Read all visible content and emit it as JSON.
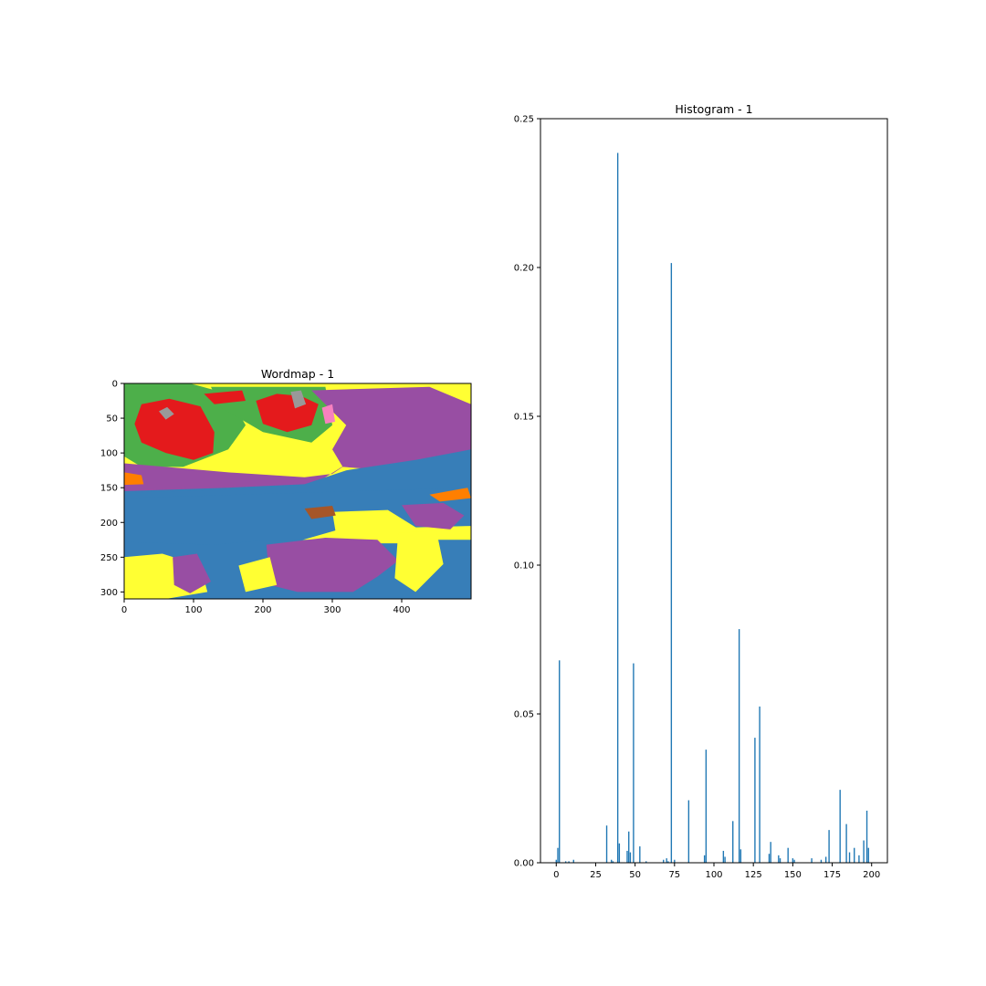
{
  "chart_data": [
    {
      "type": "heatmap",
      "title": "Wordmap - 1",
      "xlabel": "",
      "ylabel": "",
      "xlim": [
        0,
        500
      ],
      "ylim": [
        310,
        0
      ],
      "xticks": [
        "0",
        "100",
        "200",
        "300",
        "400"
      ],
      "yticks": [
        "0",
        "50",
        "100",
        "150",
        "200",
        "250",
        "300"
      ],
      "grid": false,
      "palette": {
        "red": "#e41a1c",
        "blue": "#377eb8",
        "green": "#4daf4a",
        "purple": "#984ea3",
        "orange": "#ff7f00",
        "yellow": "#ffff33",
        "brown": "#a65628",
        "pink": "#f781bf",
        "gray": "#999999"
      },
      "regions": [
        {
          "color": "yellow",
          "points": [
            [
              0,
              0
            ],
            [
              500,
              0
            ],
            [
              500,
              310
            ],
            [
              0,
              310
            ]
          ]
        },
        {
          "color": "green",
          "points": [
            [
              0,
              0
            ],
            [
              95,
              0
            ],
            [
              150,
              15
            ],
            [
              175,
              60
            ],
            [
              150,
              95
            ],
            [
              85,
              120
            ],
            [
              25,
              120
            ],
            [
              0,
              105
            ]
          ]
        },
        {
          "color": "red",
          "points": [
            [
              15,
              58
            ],
            [
              25,
              30
            ],
            [
              65,
              22
            ],
            [
              110,
              33
            ],
            [
              130,
              70
            ],
            [
              128,
              100
            ],
            [
              100,
              110
            ],
            [
              60,
              100
            ],
            [
              25,
              85
            ]
          ]
        },
        {
          "color": "gray",
          "points": [
            [
              50,
              40
            ],
            [
              62,
              34
            ],
            [
              72,
              44
            ],
            [
              60,
              52
            ]
          ]
        },
        {
          "color": "green",
          "points": [
            [
              125,
              5
            ],
            [
              290,
              5
            ],
            [
              300,
              60
            ],
            [
              270,
              85
            ],
            [
              200,
              70
            ],
            [
              140,
              35
            ]
          ]
        },
        {
          "color": "red",
          "points": [
            [
              190,
              25
            ],
            [
              220,
              15
            ],
            [
              255,
              18
            ],
            [
              280,
              30
            ],
            [
              270,
              60
            ],
            [
              235,
              70
            ],
            [
              200,
              58
            ]
          ]
        },
        {
          "color": "red",
          "points": [
            [
              115,
              15
            ],
            [
              170,
              10
            ],
            [
              175,
              25
            ],
            [
              130,
              30
            ]
          ]
        },
        {
          "color": "gray",
          "points": [
            [
              240,
              12
            ],
            [
              255,
              10
            ],
            [
              262,
              30
            ],
            [
              246,
              36
            ]
          ]
        },
        {
          "color": "purple",
          "points": [
            [
              270,
              10
            ],
            [
              440,
              5
            ],
            [
              500,
              30
            ],
            [
              500,
              110
            ],
            [
              380,
              125
            ],
            [
              315,
              120
            ],
            [
              300,
              95
            ],
            [
              320,
              60
            ]
          ]
        },
        {
          "color": "purple",
          "points": [
            [
              0,
              115
            ],
            [
              60,
              120
            ],
            [
              150,
              128
            ],
            [
              260,
              135
            ],
            [
              300,
              130
            ],
            [
              330,
              110
            ],
            [
              250,
              160
            ],
            [
              60,
              170
            ],
            [
              0,
              160
            ]
          ]
        },
        {
          "color": "blue",
          "points": [
            [
              320,
              125
            ],
            [
              420,
              110
            ],
            [
              500,
              95
            ],
            [
              500,
              155
            ],
            [
              450,
              170
            ],
            [
              320,
              175
            ],
            [
              150,
              180
            ],
            [
              0,
              175
            ],
            [
              0,
              155
            ],
            [
              150,
              150
            ],
            [
              260,
              145
            ]
          ]
        },
        {
          "color": "blue",
          "points": [
            [
              0,
              165
            ],
            [
              500,
              150
            ],
            [
              500,
              205
            ],
            [
              310,
              210
            ],
            [
              240,
              230
            ],
            [
              140,
              235
            ],
            [
              0,
              230
            ]
          ]
        },
        {
          "color": "blue",
          "points": [
            [
              0,
              228
            ],
            [
              130,
              232
            ],
            [
              210,
              225
            ],
            [
              500,
              225
            ],
            [
              500,
              310
            ],
            [
              0,
              310
            ]
          ]
        },
        {
          "color": "yellow",
          "points": [
            [
              300,
              185
            ],
            [
              380,
              182
            ],
            [
              425,
              210
            ],
            [
              400,
              230
            ],
            [
              330,
              230
            ],
            [
              305,
              215
            ]
          ]
        },
        {
          "color": "purple",
          "points": [
            [
              400,
              175
            ],
            [
              460,
              172
            ],
            [
              490,
              190
            ],
            [
              470,
              210
            ],
            [
              420,
              205
            ]
          ]
        },
        {
          "color": "purple",
          "points": [
            [
              205,
              232
            ],
            [
              290,
              222
            ],
            [
              365,
              225
            ],
            [
              395,
              255
            ],
            [
              365,
              278
            ],
            [
              330,
              300
            ],
            [
              250,
              300
            ],
            [
              210,
              290
            ]
          ]
        },
        {
          "color": "yellow",
          "points": [
            [
              165,
              262
            ],
            [
              210,
              250
            ],
            [
              220,
              290
            ],
            [
              175,
              300
            ]
          ]
        },
        {
          "color": "yellow",
          "points": [
            [
              0,
              250
            ],
            [
              55,
              245
            ],
            [
              110,
              262
            ],
            [
              120,
              300
            ],
            [
              60,
              310
            ],
            [
              0,
              310
            ]
          ]
        },
        {
          "color": "purple",
          "points": [
            [
              70,
              250
            ],
            [
              105,
              245
            ],
            [
              125,
              285
            ],
            [
              95,
              302
            ],
            [
              72,
              290
            ]
          ]
        },
        {
          "color": "yellow",
          "points": [
            [
              395,
              215
            ],
            [
              450,
              212
            ],
            [
              460,
              260
            ],
            [
              420,
              300
            ],
            [
              390,
              280
            ]
          ]
        },
        {
          "color": "orange",
          "points": [
            [
              440,
              160
            ],
            [
              495,
              150
            ],
            [
              500,
              165
            ],
            [
              455,
              170
            ]
          ]
        },
        {
          "color": "orange",
          "points": [
            [
              0,
              128
            ],
            [
              25,
              132
            ],
            [
              28,
              145
            ],
            [
              0,
              146
            ]
          ]
        },
        {
          "color": "brown",
          "points": [
            [
              260,
              180
            ],
            [
              300,
              176
            ],
            [
              305,
              190
            ],
            [
              270,
              195
            ]
          ]
        },
        {
          "color": "pink",
          "points": [
            [
              285,
              35
            ],
            [
              300,
              30
            ],
            [
              304,
              55
            ],
            [
              290,
              58
            ]
          ]
        }
      ]
    },
    {
      "type": "bar",
      "title": "Histogram - 1",
      "xlabel": "",
      "ylabel": "",
      "xlim": [
        -10,
        210
      ],
      "ylim": [
        0,
        0.25
      ],
      "xticks": [
        "0",
        "25",
        "50",
        "75",
        "100",
        "125",
        "150",
        "175",
        "200"
      ],
      "yticks": [
        "0.00",
        "0.05",
        "0.10",
        "0.15",
        "0.20",
        "0.25"
      ],
      "grid": false,
      "color": "#1f77b4",
      "bar_width": 1.0,
      "bars": [
        {
          "x": 0,
          "y": 0.001
        },
        {
          "x": 1,
          "y": 0.005
        },
        {
          "x": 2,
          "y": 0.068
        },
        {
          "x": 6,
          "y": 0.0005
        },
        {
          "x": 8,
          "y": 0.0005
        },
        {
          "x": 11,
          "y": 0.001
        },
        {
          "x": 32,
          "y": 0.0125
        },
        {
          "x": 35,
          "y": 0.001
        },
        {
          "x": 36,
          "y": 0.0005
        },
        {
          "x": 39,
          "y": 0.2385
        },
        {
          "x": 40,
          "y": 0.0065
        },
        {
          "x": 45,
          "y": 0.004
        },
        {
          "x": 46,
          "y": 0.0105
        },
        {
          "x": 47,
          "y": 0.0035
        },
        {
          "x": 49,
          "y": 0.067
        },
        {
          "x": 53,
          "y": 0.0055
        },
        {
          "x": 57,
          "y": 0.0005
        },
        {
          "x": 68,
          "y": 0.001
        },
        {
          "x": 70,
          "y": 0.0015
        },
        {
          "x": 71,
          "y": 0.0005
        },
        {
          "x": 73,
          "y": 0.2015
        },
        {
          "x": 75,
          "y": 0.001
        },
        {
          "x": 84,
          "y": 0.021
        },
        {
          "x": 94,
          "y": 0.0025
        },
        {
          "x": 95,
          "y": 0.038
        },
        {
          "x": 106,
          "y": 0.004
        },
        {
          "x": 107,
          "y": 0.002
        },
        {
          "x": 112,
          "y": 0.014
        },
        {
          "x": 116,
          "y": 0.0785
        },
        {
          "x": 117,
          "y": 0.0045
        },
        {
          "x": 126,
          "y": 0.042
        },
        {
          "x": 129,
          "y": 0.0525
        },
        {
          "x": 135,
          "y": 0.003
        },
        {
          "x": 136,
          "y": 0.007
        },
        {
          "x": 141,
          "y": 0.0025
        },
        {
          "x": 142,
          "y": 0.0015
        },
        {
          "x": 147,
          "y": 0.005
        },
        {
          "x": 150,
          "y": 0.0015
        },
        {
          "x": 151,
          "y": 0.001
        },
        {
          "x": 162,
          "y": 0.0015
        },
        {
          "x": 168,
          "y": 0.001
        },
        {
          "x": 171,
          "y": 0.002
        },
        {
          "x": 173,
          "y": 0.011
        },
        {
          "x": 180,
          "y": 0.0245
        },
        {
          "x": 184,
          "y": 0.013
        },
        {
          "x": 186,
          "y": 0.0035
        },
        {
          "x": 189,
          "y": 0.005
        },
        {
          "x": 192,
          "y": 0.0025
        },
        {
          "x": 195,
          "y": 0.0075
        },
        {
          "x": 197,
          "y": 0.0175
        },
        {
          "x": 198,
          "y": 0.005
        }
      ]
    }
  ]
}
